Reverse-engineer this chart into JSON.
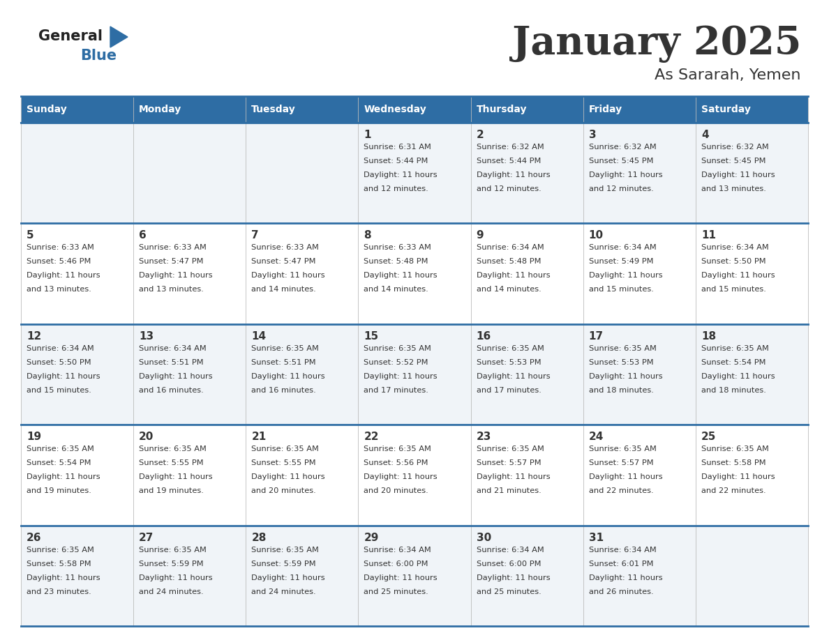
{
  "title": "January 2025",
  "subtitle": "As Sararah, Yemen",
  "days_of_week": [
    "Sunday",
    "Monday",
    "Tuesday",
    "Wednesday",
    "Thursday",
    "Friday",
    "Saturday"
  ],
  "header_bg": "#2E6DA4",
  "header_text_color": "#FFFFFF",
  "cell_bg_even": "#F0F4F8",
  "cell_bg_odd": "#FFFFFF",
  "border_color": "#2E6DA4",
  "text_color": "#333333",
  "title_color": "#333333",
  "logo_text_color": "#222222",
  "logo_blue_color": "#2E6DA4",
  "calendar_data": [
    [
      {
        "day": "",
        "sunrise": "",
        "sunset": "",
        "daylight_h": "",
        "daylight_m": ""
      },
      {
        "day": "",
        "sunrise": "",
        "sunset": "",
        "daylight_h": "",
        "daylight_m": ""
      },
      {
        "day": "",
        "sunrise": "",
        "sunset": "",
        "daylight_h": "",
        "daylight_m": ""
      },
      {
        "day": "1",
        "sunrise": "6:31 AM",
        "sunset": "5:44 PM",
        "daylight_h": "11",
        "daylight_m": "12"
      },
      {
        "day": "2",
        "sunrise": "6:32 AM",
        "sunset": "5:44 PM",
        "daylight_h": "11",
        "daylight_m": "12"
      },
      {
        "day": "3",
        "sunrise": "6:32 AM",
        "sunset": "5:45 PM",
        "daylight_h": "11",
        "daylight_m": "12"
      },
      {
        "day": "4",
        "sunrise": "6:32 AM",
        "sunset": "5:45 PM",
        "daylight_h": "11",
        "daylight_m": "13"
      }
    ],
    [
      {
        "day": "5",
        "sunrise": "6:33 AM",
        "sunset": "5:46 PM",
        "daylight_h": "11",
        "daylight_m": "13"
      },
      {
        "day": "6",
        "sunrise": "6:33 AM",
        "sunset": "5:47 PM",
        "daylight_h": "11",
        "daylight_m": "13"
      },
      {
        "day": "7",
        "sunrise": "6:33 AM",
        "sunset": "5:47 PM",
        "daylight_h": "11",
        "daylight_m": "14"
      },
      {
        "day": "8",
        "sunrise": "6:33 AM",
        "sunset": "5:48 PM",
        "daylight_h": "11",
        "daylight_m": "14"
      },
      {
        "day": "9",
        "sunrise": "6:34 AM",
        "sunset": "5:48 PM",
        "daylight_h": "11",
        "daylight_m": "14"
      },
      {
        "day": "10",
        "sunrise": "6:34 AM",
        "sunset": "5:49 PM",
        "daylight_h": "11",
        "daylight_m": "15"
      },
      {
        "day": "11",
        "sunrise": "6:34 AM",
        "sunset": "5:50 PM",
        "daylight_h": "11",
        "daylight_m": "15"
      }
    ],
    [
      {
        "day": "12",
        "sunrise": "6:34 AM",
        "sunset": "5:50 PM",
        "daylight_h": "11",
        "daylight_m": "15"
      },
      {
        "day": "13",
        "sunrise": "6:34 AM",
        "sunset": "5:51 PM",
        "daylight_h": "11",
        "daylight_m": "16"
      },
      {
        "day": "14",
        "sunrise": "6:35 AM",
        "sunset": "5:51 PM",
        "daylight_h": "11",
        "daylight_m": "16"
      },
      {
        "day": "15",
        "sunrise": "6:35 AM",
        "sunset": "5:52 PM",
        "daylight_h": "11",
        "daylight_m": "17"
      },
      {
        "day": "16",
        "sunrise": "6:35 AM",
        "sunset": "5:53 PM",
        "daylight_h": "11",
        "daylight_m": "17"
      },
      {
        "day": "17",
        "sunrise": "6:35 AM",
        "sunset": "5:53 PM",
        "daylight_h": "11",
        "daylight_m": "18"
      },
      {
        "day": "18",
        "sunrise": "6:35 AM",
        "sunset": "5:54 PM",
        "daylight_h": "11",
        "daylight_m": "18"
      }
    ],
    [
      {
        "day": "19",
        "sunrise": "6:35 AM",
        "sunset": "5:54 PM",
        "daylight_h": "11",
        "daylight_m": "19"
      },
      {
        "day": "20",
        "sunrise": "6:35 AM",
        "sunset": "5:55 PM",
        "daylight_h": "11",
        "daylight_m": "19"
      },
      {
        "day": "21",
        "sunrise": "6:35 AM",
        "sunset": "5:55 PM",
        "daylight_h": "11",
        "daylight_m": "20"
      },
      {
        "day": "22",
        "sunrise": "6:35 AM",
        "sunset": "5:56 PM",
        "daylight_h": "11",
        "daylight_m": "20"
      },
      {
        "day": "23",
        "sunrise": "6:35 AM",
        "sunset": "5:57 PM",
        "daylight_h": "11",
        "daylight_m": "21"
      },
      {
        "day": "24",
        "sunrise": "6:35 AM",
        "sunset": "5:57 PM",
        "daylight_h": "11",
        "daylight_m": "22"
      },
      {
        "day": "25",
        "sunrise": "6:35 AM",
        "sunset": "5:58 PM",
        "daylight_h": "11",
        "daylight_m": "22"
      }
    ],
    [
      {
        "day": "26",
        "sunrise": "6:35 AM",
        "sunset": "5:58 PM",
        "daylight_h": "11",
        "daylight_m": "23"
      },
      {
        "day": "27",
        "sunrise": "6:35 AM",
        "sunset": "5:59 PM",
        "daylight_h": "11",
        "daylight_m": "24"
      },
      {
        "day": "28",
        "sunrise": "6:35 AM",
        "sunset": "5:59 PM",
        "daylight_h": "11",
        "daylight_m": "24"
      },
      {
        "day": "29",
        "sunrise": "6:34 AM",
        "sunset": "6:00 PM",
        "daylight_h": "11",
        "daylight_m": "25"
      },
      {
        "day": "30",
        "sunrise": "6:34 AM",
        "sunset": "6:00 PM",
        "daylight_h": "11",
        "daylight_m": "25"
      },
      {
        "day": "31",
        "sunrise": "6:34 AM",
        "sunset": "6:01 PM",
        "daylight_h": "11",
        "daylight_m": "26"
      },
      {
        "day": "",
        "sunrise": "",
        "sunset": "",
        "daylight_h": "",
        "daylight_m": ""
      }
    ]
  ]
}
